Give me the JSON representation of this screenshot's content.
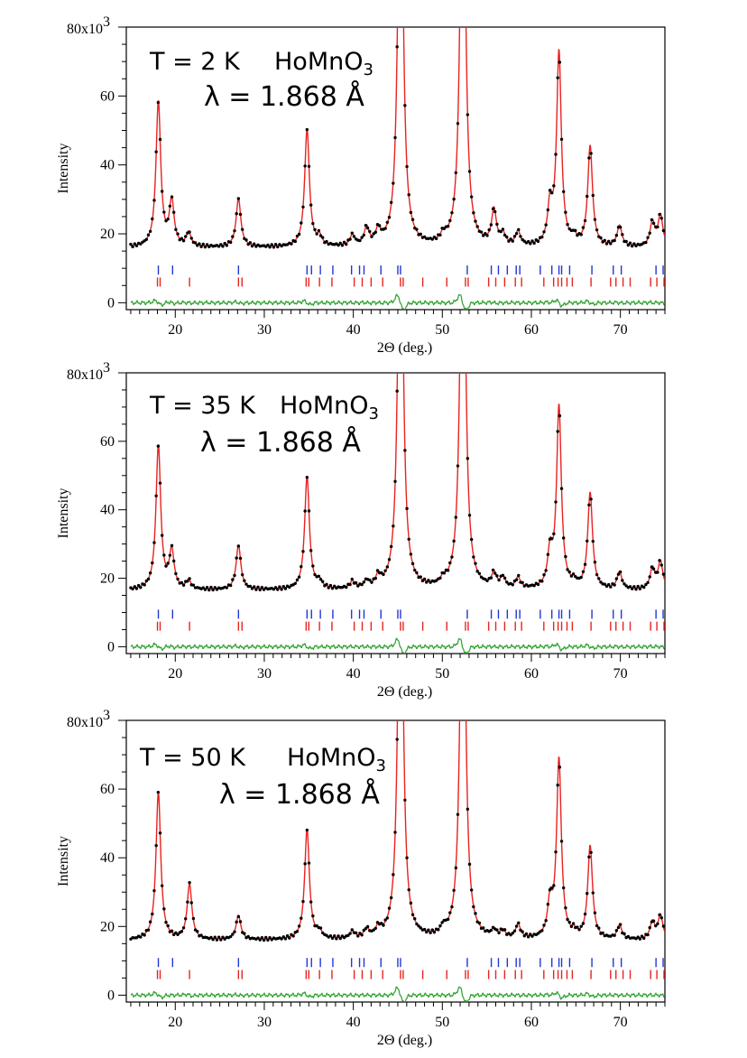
{
  "chart_data": [
    {
      "type": "line",
      "annotations": {
        "temperature": "T = 2 K",
        "compound": "HoMnO",
        "compound_sub": "3",
        "wavelength": "λ = 1.868 Å"
      },
      "xlabel": "2Θ (deg.)",
      "ylabel": "Intensity",
      "xlim": [
        14.5,
        75
      ],
      "ylim": [
        -2,
        80
      ],
      "x_ticks": [
        "20",
        "30",
        "40",
        "50",
        "60",
        "70"
      ],
      "y_ticks": [
        "0",
        "20",
        "40",
        "60"
      ],
      "y_top_label": "80x10",
      "y_top_label_exp": "3",
      "background": 16,
      "peaks": [
        [
          18.1,
          42
        ],
        [
          19.6,
          13
        ],
        [
          21.5,
          4
        ],
        [
          27.1,
          14
        ],
        [
          34.8,
          34
        ],
        [
          36.2,
          2.5
        ],
        [
          39.9,
          3
        ],
        [
          41.5,
          5
        ],
        [
          42.8,
          4
        ],
        [
          45.3,
          140
        ],
        [
          50.1,
          2
        ],
        [
          52.3,
          145
        ],
        [
          55.8,
          10
        ],
        [
          56.8,
          3
        ],
        [
          58.5,
          4
        ],
        [
          62.1,
          11
        ],
        [
          63.1,
          56
        ],
        [
          64.8,
          2
        ],
        [
          66.6,
          29
        ],
        [
          69.9,
          6
        ],
        [
          73.6,
          7
        ],
        [
          74.5,
          9
        ]
      ],
      "tick_rows": {
        "blue": [
          18.1,
          19.7,
          27.1,
          34.8,
          35.3,
          36.3,
          37.7,
          39.8,
          40.7,
          41.2,
          43.1,
          45.0,
          45.3,
          52.8,
          55.5,
          56.3,
          57.3,
          58.3,
          58.7,
          61.0,
          62.3,
          63.1,
          63.4,
          64.3,
          66.8,
          69.2,
          70.1,
          74.0,
          74.8
        ],
        "red": [
          18.0,
          18.3,
          21.6,
          27.1,
          27.5,
          34.7,
          35.0,
          36.2,
          37.6,
          40.1,
          41.0,
          42.0,
          43.3,
          45.3,
          45.6,
          47.8,
          50.5,
          52.6,
          52.9,
          55.2,
          56.0,
          57.0,
          58.2,
          58.9,
          61.4,
          62.5,
          63.0,
          63.4,
          64.0,
          64.6,
          66.7,
          68.9,
          69.5,
          70.3,
          71.1,
          73.4,
          74.1,
          74.9
        ]
      },
      "series": []
    },
    {
      "type": "line",
      "annotations": {
        "temperature": "T = 35 K",
        "compound": "HoMnO",
        "compound_sub": "3",
        "wavelength": "λ = 1.868 Å"
      },
      "xlabel": "2Θ (deg.)",
      "ylabel": "Intensity",
      "xlim": [
        14.5,
        75
      ],
      "ylim": [
        -2,
        80
      ],
      "x_ticks": [
        "20",
        "30",
        "40",
        "50",
        "60",
        "70"
      ],
      "y_ticks": [
        "0",
        "20",
        "40",
        "60"
      ],
      "y_top_label": "80x10",
      "y_top_label_exp": "3",
      "background": 16.5,
      "peaks": [
        [
          18.1,
          42
        ],
        [
          19.6,
          11
        ],
        [
          21.5,
          2.5
        ],
        [
          27.1,
          13
        ],
        [
          34.8,
          33
        ],
        [
          36.2,
          2
        ],
        [
          39.9,
          2
        ],
        [
          41.5,
          2
        ],
        [
          42.8,
          3
        ],
        [
          45.3,
          140
        ],
        [
          50.1,
          1.5
        ],
        [
          52.3,
          145
        ],
        [
          55.8,
          4
        ],
        [
          56.8,
          3
        ],
        [
          58.5,
          3
        ],
        [
          62.1,
          10
        ],
        [
          63.1,
          53
        ],
        [
          64.8,
          1.5
        ],
        [
          66.6,
          28
        ],
        [
          69.9,
          5
        ],
        [
          73.6,
          6
        ],
        [
          74.5,
          8
        ]
      ],
      "tick_rows": {
        "blue": [
          18.1,
          19.7,
          27.1,
          34.8,
          35.3,
          36.3,
          37.7,
          39.8,
          40.7,
          41.2,
          43.1,
          45.0,
          45.3,
          52.8,
          55.5,
          56.3,
          57.3,
          58.3,
          58.7,
          61.0,
          62.3,
          63.1,
          63.4,
          64.3,
          66.8,
          69.2,
          70.1,
          74.0,
          74.8
        ],
        "red": [
          18.0,
          18.3,
          21.6,
          27.1,
          27.5,
          34.7,
          35.0,
          36.2,
          37.6,
          40.1,
          41.0,
          42.0,
          43.3,
          45.3,
          45.6,
          47.8,
          50.5,
          52.6,
          52.9,
          55.2,
          56.0,
          57.0,
          58.2,
          58.9,
          61.4,
          62.5,
          63.0,
          63.4,
          64.0,
          64.6,
          66.7,
          68.9,
          69.5,
          70.3,
          71.1,
          73.4,
          74.1,
          74.9
        ]
      },
      "series": []
    },
    {
      "type": "line",
      "annotations": {
        "temperature": "T = 50 K",
        "compound": "HoMnO",
        "compound_sub": "3",
        "wavelength": "λ = 1.868 Å"
      },
      "xlabel": "2Θ (deg.)",
      "ylabel": "Intensity",
      "xlim": [
        14.5,
        75
      ],
      "ylim": [
        -2,
        80
      ],
      "x_ticks": [
        "20",
        "30",
        "40",
        "50",
        "60",
        "70"
      ],
      "y_ticks": [
        "0",
        "20",
        "40",
        "60"
      ],
      "y_top_label": "80x10",
      "y_top_label_exp": "3",
      "background": 16,
      "peaks": [
        [
          18.1,
          43
        ],
        [
          21.6,
          16
        ],
        [
          27.1,
          7
        ],
        [
          34.8,
          32
        ],
        [
          36.2,
          2
        ],
        [
          39.9,
          2
        ],
        [
          41.5,
          2.5
        ],
        [
          42.8,
          2.5
        ],
        [
          45.3,
          140
        ],
        [
          50.1,
          2
        ],
        [
          52.3,
          145
        ],
        [
          55.8,
          2
        ],
        [
          56.8,
          2
        ],
        [
          58.5,
          4
        ],
        [
          62.1,
          10
        ],
        [
          63.1,
          52
        ],
        [
          64.8,
          1.5
        ],
        [
          66.6,
          27
        ],
        [
          69.9,
          4
        ],
        [
          73.6,
          5
        ],
        [
          74.5,
          7
        ]
      ],
      "tick_rows": {
        "blue": [
          18.1,
          19.7,
          27.1,
          34.8,
          35.3,
          36.3,
          37.7,
          39.8,
          40.7,
          41.2,
          43.1,
          45.0,
          45.3,
          52.8,
          55.5,
          56.3,
          57.3,
          58.3,
          58.7,
          61.0,
          62.3,
          63.1,
          63.4,
          64.3,
          66.8,
          69.2,
          70.1,
          74.0,
          74.8
        ],
        "red": [
          18.0,
          18.3,
          21.6,
          27.1,
          27.5,
          34.7,
          35.0,
          36.2,
          37.6,
          40.1,
          41.0,
          42.0,
          43.3,
          45.3,
          45.6,
          47.8,
          50.5,
          52.6,
          52.9,
          55.2,
          56.0,
          57.0,
          58.2,
          58.9,
          61.4,
          62.5,
          63.0,
          63.4,
          64.0,
          64.6,
          66.7,
          68.9,
          69.5,
          70.3,
          71.1,
          73.4,
          74.1,
          74.9
        ]
      },
      "series": []
    }
  ],
  "colors": {
    "observed": "#000000",
    "calculated": "#e8231f",
    "difference": "#2ca02c",
    "tick_blue": "#2236d6",
    "tick_red": "#e8231f"
  }
}
